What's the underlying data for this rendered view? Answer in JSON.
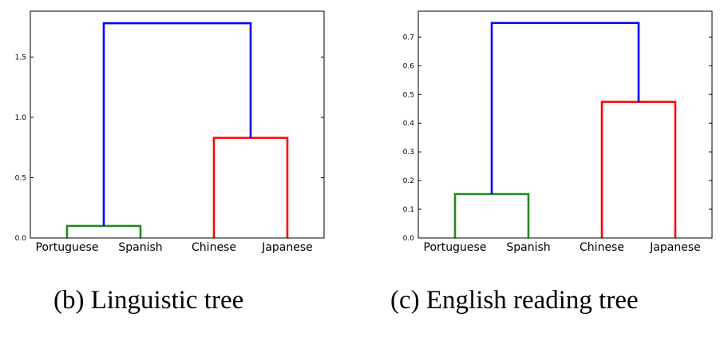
{
  "chart_data": [
    {
      "type": "dendrogram",
      "caption": "(b) Linguistic tree",
      "leaves": [
        "Portuguese",
        "Spanish",
        "Chinese",
        "Japanese"
      ],
      "ylim": [
        0,
        1.88
      ],
      "yticks": [
        0.0,
        0.5,
        1.0,
        1.5
      ],
      "ytick_labels": [
        "0.0",
        "0.5",
        "1.0",
        "1.5"
      ],
      "grid": false,
      "merges": [
        {
          "left": "Portuguese",
          "right": "Spanish",
          "height": 0.1,
          "color": "#228B22"
        },
        {
          "left": "Chinese",
          "right": "Japanese",
          "height": 0.83,
          "color": "#FF0000"
        },
        {
          "left": "Portuguese+Spanish",
          "right": "Chinese+Japanese",
          "height": 1.78,
          "color": "#0000FF"
        }
      ]
    },
    {
      "type": "dendrogram",
      "caption": "(c) English reading tree",
      "leaves": [
        "Portuguese",
        "Spanish",
        "Chinese",
        "Japanese"
      ],
      "ylim": [
        0,
        0.79
      ],
      "yticks": [
        0.0,
        0.1,
        0.2,
        0.3,
        0.4,
        0.5,
        0.6,
        0.7
      ],
      "ytick_labels": [
        "0.0",
        "0.1",
        "0.2",
        "0.3",
        "0.4",
        "0.5",
        "0.6",
        "0.7"
      ],
      "grid": false,
      "merges": [
        {
          "left": "Portuguese",
          "right": "Spanish",
          "height": 0.153,
          "color": "#228B22"
        },
        {
          "left": "Chinese",
          "right": "Japanese",
          "height": 0.474,
          "color": "#FF0000"
        },
        {
          "left": "Portuguese+Spanish",
          "right": "Chinese+Japanese",
          "height": 0.749,
          "color": "#0000FF"
        }
      ]
    }
  ]
}
